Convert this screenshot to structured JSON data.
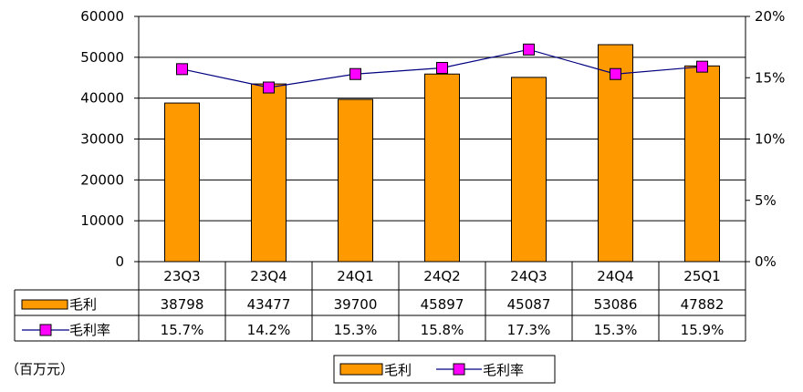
{
  "chart_data": {
    "type": "bar",
    "categories": [
      "23Q3",
      "23Q4",
      "24Q1",
      "24Q2",
      "24Q3",
      "24Q4",
      "25Q1"
    ],
    "series": [
      {
        "name": "毛利",
        "kind": "bar",
        "axis": "left",
        "values": [
          38798,
          43477,
          39700,
          45897,
          45087,
          53086,
          47882
        ],
        "labels": [
          "38798",
          "43477",
          "39700",
          "45897",
          "45087",
          "53086",
          "47882"
        ],
        "color": "#FF9900"
      },
      {
        "name": "毛利率",
        "kind": "line",
        "axis": "right",
        "values": [
          15.7,
          14.2,
          15.3,
          15.8,
          17.3,
          15.3,
          15.9
        ],
        "labels": [
          "15.7%",
          "14.2%",
          "15.3%",
          "15.8%",
          "17.3%",
          "15.3%",
          "15.9%"
        ],
        "color": "#FF00FF",
        "line_color": "#000080"
      }
    ],
    "y_left": {
      "ylim": [
        0,
        60000
      ],
      "ticks": [
        "0",
        "10000",
        "20000",
        "30000",
        "40000",
        "50000",
        "60000"
      ]
    },
    "y_right": {
      "ylim": [
        0,
        20
      ],
      "ticks": [
        "0%",
        "5%",
        "10%",
        "15%",
        "20%"
      ]
    },
    "grid": true,
    "legend": {
      "position": "bottom-center",
      "items": [
        "毛利",
        "毛利率"
      ]
    },
    "data_table": true,
    "unit_label": "（百万元）"
  }
}
